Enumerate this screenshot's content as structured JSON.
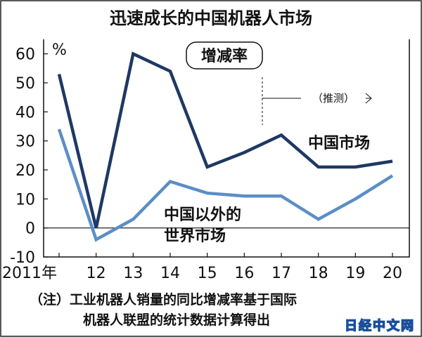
{
  "chart_data": {
    "type": "line",
    "title": "迅速成长的中国机器人市场",
    "subtitle_badge": "增减率",
    "ylabel": "%",
    "x": [
      "2011年",
      "12",
      "13",
      "14",
      "15",
      "16",
      "17",
      "18",
      "19",
      "20"
    ],
    "yticks": [
      60,
      50,
      40,
      30,
      20,
      10,
      0,
      -10
    ],
    "ylim": [
      -10,
      65
    ],
    "grid": false,
    "forecast_label": "（推测）",
    "forecast_from": "16",
    "series": [
      {
        "name": "中国市场",
        "color": "#1f3864",
        "values": [
          53,
          0,
          60,
          54,
          21,
          26,
          32,
          21,
          21,
          23
        ]
      },
      {
        "name": "中国以外的世界市场",
        "label_lines": [
          "中国以外的",
          "世界市场"
        ],
        "color": "#5b8ec6",
        "values": [
          34,
          -4,
          3,
          16,
          12,
          11,
          11,
          3,
          10,
          18
        ]
      }
    ]
  },
  "footnote": [
    "（注）工业机器人销量的同比增减率基于国际",
    "机器人联盟的统计数据计算得出"
  ],
  "watermark": "日经中文网"
}
